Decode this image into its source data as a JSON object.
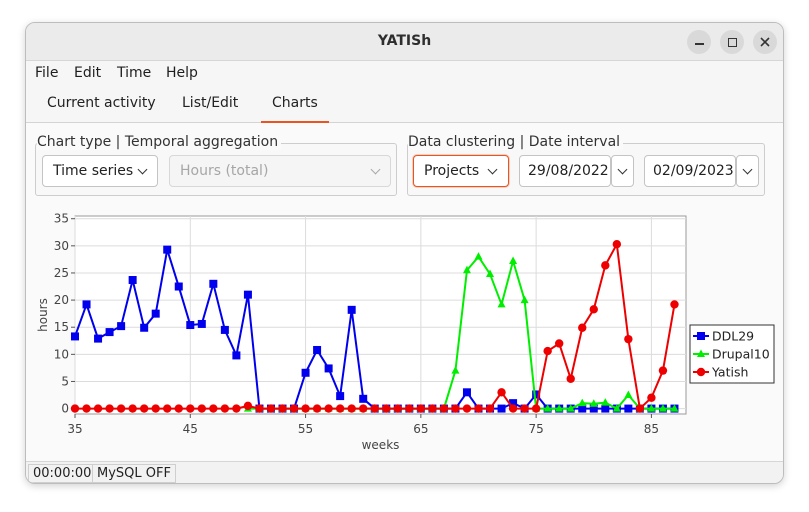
{
  "window": {
    "title": "YATISh"
  },
  "menu": [
    "File",
    "Edit",
    "Time",
    "Help"
  ],
  "tabs": [
    "Current activity",
    "List/Edit",
    "Charts"
  ],
  "active_tab": "Charts",
  "controls": {
    "chart_group_title": "Chart type | Temporal aggregation",
    "chart_type": "Time series",
    "aggregation": "Hours (total)",
    "cluster_group_title": "Data clustering | Date interval",
    "clustering": "Projects",
    "date_from": "29/08/2022",
    "date_to": "02/09/2023"
  },
  "status": {
    "timer": "00:00:00",
    "db": "MySQL OFF"
  },
  "colors": {
    "accent": "#e95420",
    "ddl29": "#0000ee",
    "drupal10": "#00ee00",
    "yatish": "#ee0000"
  },
  "chart_data": {
    "type": "line",
    "xlabel": "weeks",
    "ylabel": "hours",
    "xlim": [
      35,
      88
    ],
    "ylim": [
      -1,
      35.5
    ],
    "xticks": [
      35,
      45,
      55,
      65,
      75,
      85
    ],
    "yticks": [
      0,
      5,
      10,
      15,
      20,
      25,
      30,
      35
    ],
    "grid": true,
    "legend_position": "right",
    "series": [
      {
        "name": "DDL29",
        "color": "#0000ee",
        "marker": "square",
        "x": [
          35,
          36,
          37,
          38,
          39,
          40,
          41,
          42,
          43,
          44,
          45,
          46,
          47,
          48,
          49,
          50,
          51,
          52,
          53,
          54,
          55,
          56,
          57,
          58,
          59,
          60,
          61,
          62,
          63,
          64,
          65,
          66,
          67,
          68,
          69,
          70,
          71,
          72,
          73,
          74,
          75,
          76,
          77,
          78,
          79,
          80,
          81,
          82,
          83,
          84,
          85,
          86,
          87
        ],
        "y": [
          13.3,
          19.2,
          12.9,
          14.1,
          15.2,
          23.7,
          14.9,
          17.5,
          29.3,
          22.5,
          15.4,
          15.6,
          23.0,
          14.5,
          9.8,
          21.0,
          0,
          0,
          0,
          0,
          6.6,
          10.8,
          7.4,
          2.3,
          18.2,
          1.8,
          0,
          0,
          0,
          0,
          0,
          0,
          0,
          0,
          3.0,
          0,
          0,
          0,
          1.0,
          0,
          2.6,
          0,
          0,
          0,
          0,
          0,
          0,
          0,
          0,
          0,
          0,
          0,
          0
        ]
      },
      {
        "name": "Drupal10",
        "color": "#00ee00",
        "marker": "triangle",
        "x": [
          50,
          51,
          52,
          53,
          54,
          55,
          56,
          57,
          58,
          59,
          60,
          61,
          62,
          63,
          64,
          65,
          66,
          67,
          68,
          69,
          70,
          71,
          72,
          73,
          74,
          75,
          76,
          77,
          78,
          79,
          80,
          81,
          82,
          83,
          84,
          85,
          86,
          87
        ],
        "y": [
          0,
          0,
          0,
          0,
          0,
          0,
          0,
          0,
          0,
          0,
          0,
          0,
          0,
          0,
          0,
          0,
          0,
          0,
          7.0,
          25.5,
          28.0,
          24.8,
          19.2,
          27.2,
          20.0,
          0,
          0,
          0,
          0,
          1.0,
          0.9,
          1.1,
          0,
          2.5,
          0,
          0,
          0,
          0
        ]
      },
      {
        "name": "Yatish",
        "color": "#ee0000",
        "marker": "circle",
        "x": [
          35,
          36,
          37,
          38,
          39,
          40,
          41,
          42,
          43,
          44,
          45,
          46,
          47,
          48,
          49,
          50,
          51,
          52,
          53,
          54,
          55,
          56,
          57,
          58,
          59,
          60,
          61,
          62,
          63,
          64,
          65,
          66,
          67,
          68,
          69,
          70,
          71,
          72,
          73,
          74,
          75,
          76,
          77,
          78,
          79,
          80,
          81,
          82,
          83,
          84,
          85,
          86,
          87
        ],
        "y": [
          0,
          0,
          0,
          0,
          0,
          0,
          0,
          0,
          0,
          0,
          0,
          0,
          0,
          0,
          0,
          0.5,
          0,
          0,
          0,
          0,
          0,
          0,
          0,
          0,
          0,
          0,
          0,
          0,
          0,
          0,
          0,
          0,
          0,
          0,
          0,
          0,
          0,
          3.0,
          0,
          0,
          0,
          10.6,
          12.0,
          5.5,
          14.9,
          18.3,
          26.4,
          30.3,
          12.8,
          0,
          2.0,
          7.0,
          19.2
        ]
      }
    ]
  }
}
